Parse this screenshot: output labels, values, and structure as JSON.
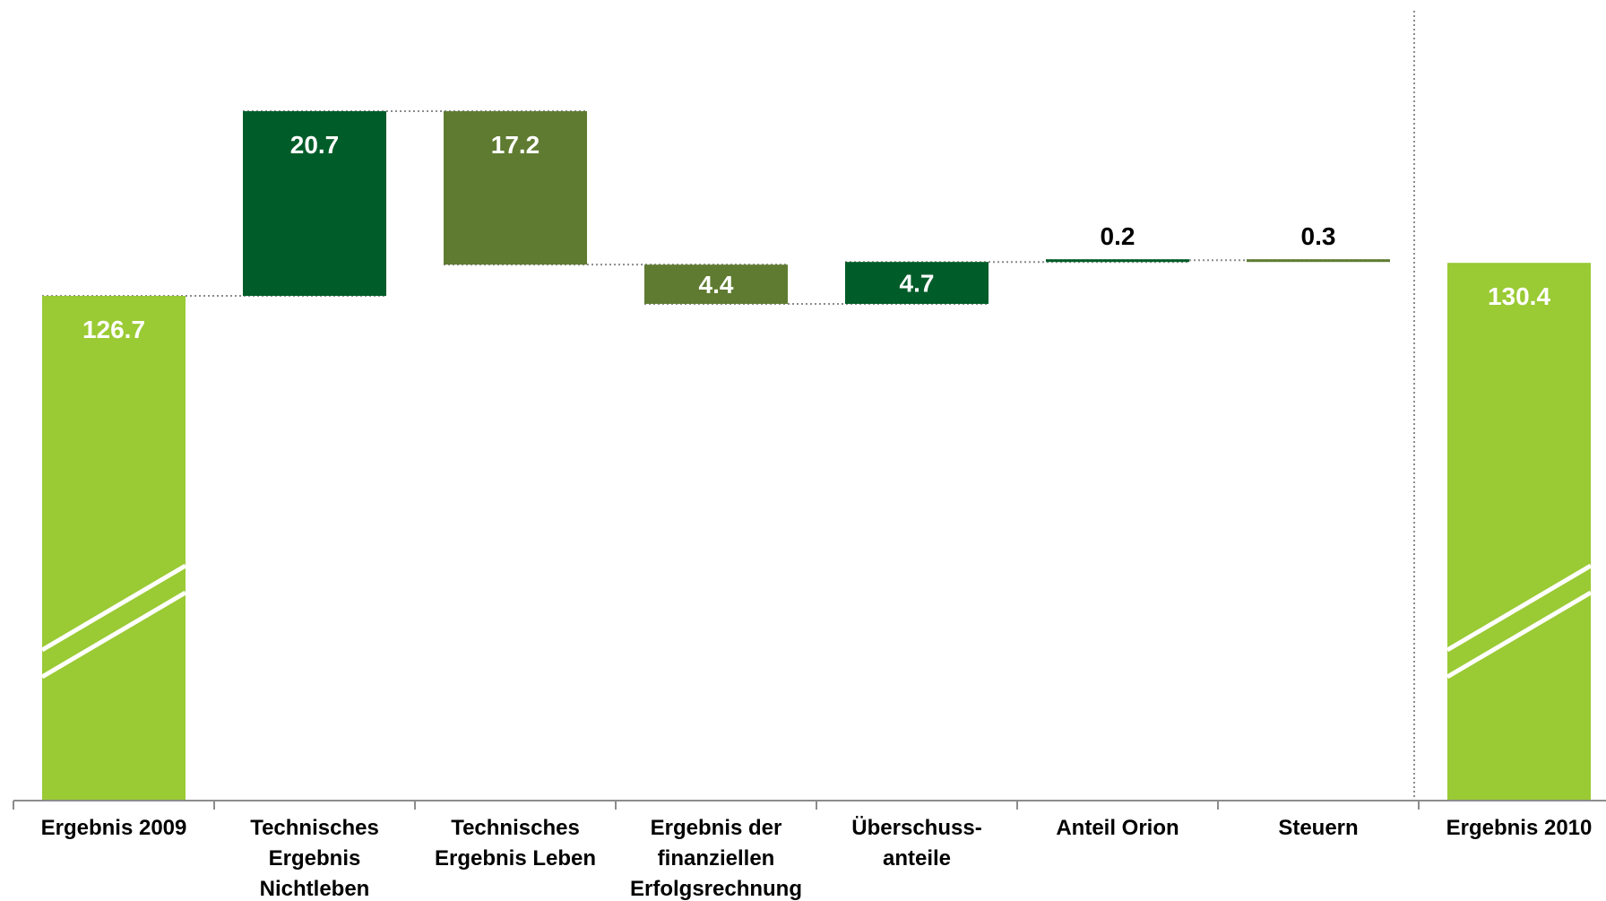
{
  "chart_data": {
    "type": "waterfall",
    "categories": [
      [
        "Ergebnis 2009"
      ],
      [
        "Technisches",
        "Ergebnis",
        "Nichtleben"
      ],
      [
        "Technisches",
        "Ergebnis Leben"
      ],
      [
        "Ergebnis der",
        "finanziellen",
        "Erfolgsrechnung"
      ],
      [
        "Überschuss-",
        "anteile"
      ],
      [
        "Anteil Orion"
      ],
      [
        "Steuern"
      ],
      [
        "Ergebnis 2010"
      ]
    ],
    "bars": [
      {
        "kind": "total",
        "start": 0,
        "end": 126.7,
        "label": "126.7",
        "color": "#9ACA34"
      },
      {
        "kind": "step",
        "start": 126.7,
        "end": 147.4,
        "label": "20.7",
        "color": "#005C28"
      },
      {
        "kind": "step",
        "start": 147.4,
        "end": 130.2,
        "label": "17.2",
        "color": "#5F7B31"
      },
      {
        "kind": "step",
        "start": 130.2,
        "end": 125.8,
        "label": "4.4",
        "color": "#5F7B31"
      },
      {
        "kind": "step",
        "start": 125.8,
        "end": 130.5,
        "label": "4.7",
        "color": "#005C28"
      },
      {
        "kind": "step",
        "start": 130.5,
        "end": 130.7,
        "label": "0.2",
        "color": "#005C28"
      },
      {
        "kind": "step",
        "start": 130.7,
        "end": 130.4,
        "label": "0.3",
        "color": "#5F7B31"
      },
      {
        "kind": "total",
        "start": 0,
        "end": 130.4,
        "label": "130.4",
        "color": "#9ACA34"
      }
    ],
    "axis_break": true,
    "colors": {
      "total": "#9ACA34",
      "dark": "#005C28",
      "olive": "#5F7B31"
    }
  }
}
